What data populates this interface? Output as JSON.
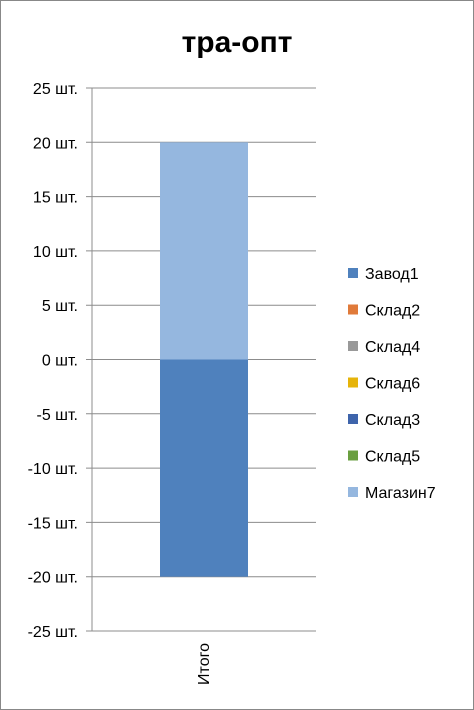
{
  "chart_data": {
    "type": "bar",
    "stacked": true,
    "title": "тра-опт",
    "xlabel": "",
    "ylabel": "",
    "categories": [
      "Итого"
    ],
    "ylim": [
      -25,
      25
    ],
    "ytick_step": 5,
    "ytick_suffix": " шт.",
    "grid": true,
    "legend_position": "right",
    "series": [
      {
        "name": "Завод1",
        "values": [
          -20
        ],
        "color": "#4F81BD"
      },
      {
        "name": "Склад2",
        "values": [
          0
        ],
        "color": "#E07A3A"
      },
      {
        "name": "Склад4",
        "values": [
          0
        ],
        "color": "#999999"
      },
      {
        "name": "Склад6",
        "values": [
          0
        ],
        "color": "#E6B40A"
      },
      {
        "name": "Склад3",
        "values": [
          0
        ],
        "color": "#3E64AB"
      },
      {
        "name": "Склад5",
        "values": [
          0
        ],
        "color": "#6A9F40"
      },
      {
        "name": "Магазин7",
        "values": [
          20
        ],
        "color": "#95B7DF"
      }
    ]
  }
}
